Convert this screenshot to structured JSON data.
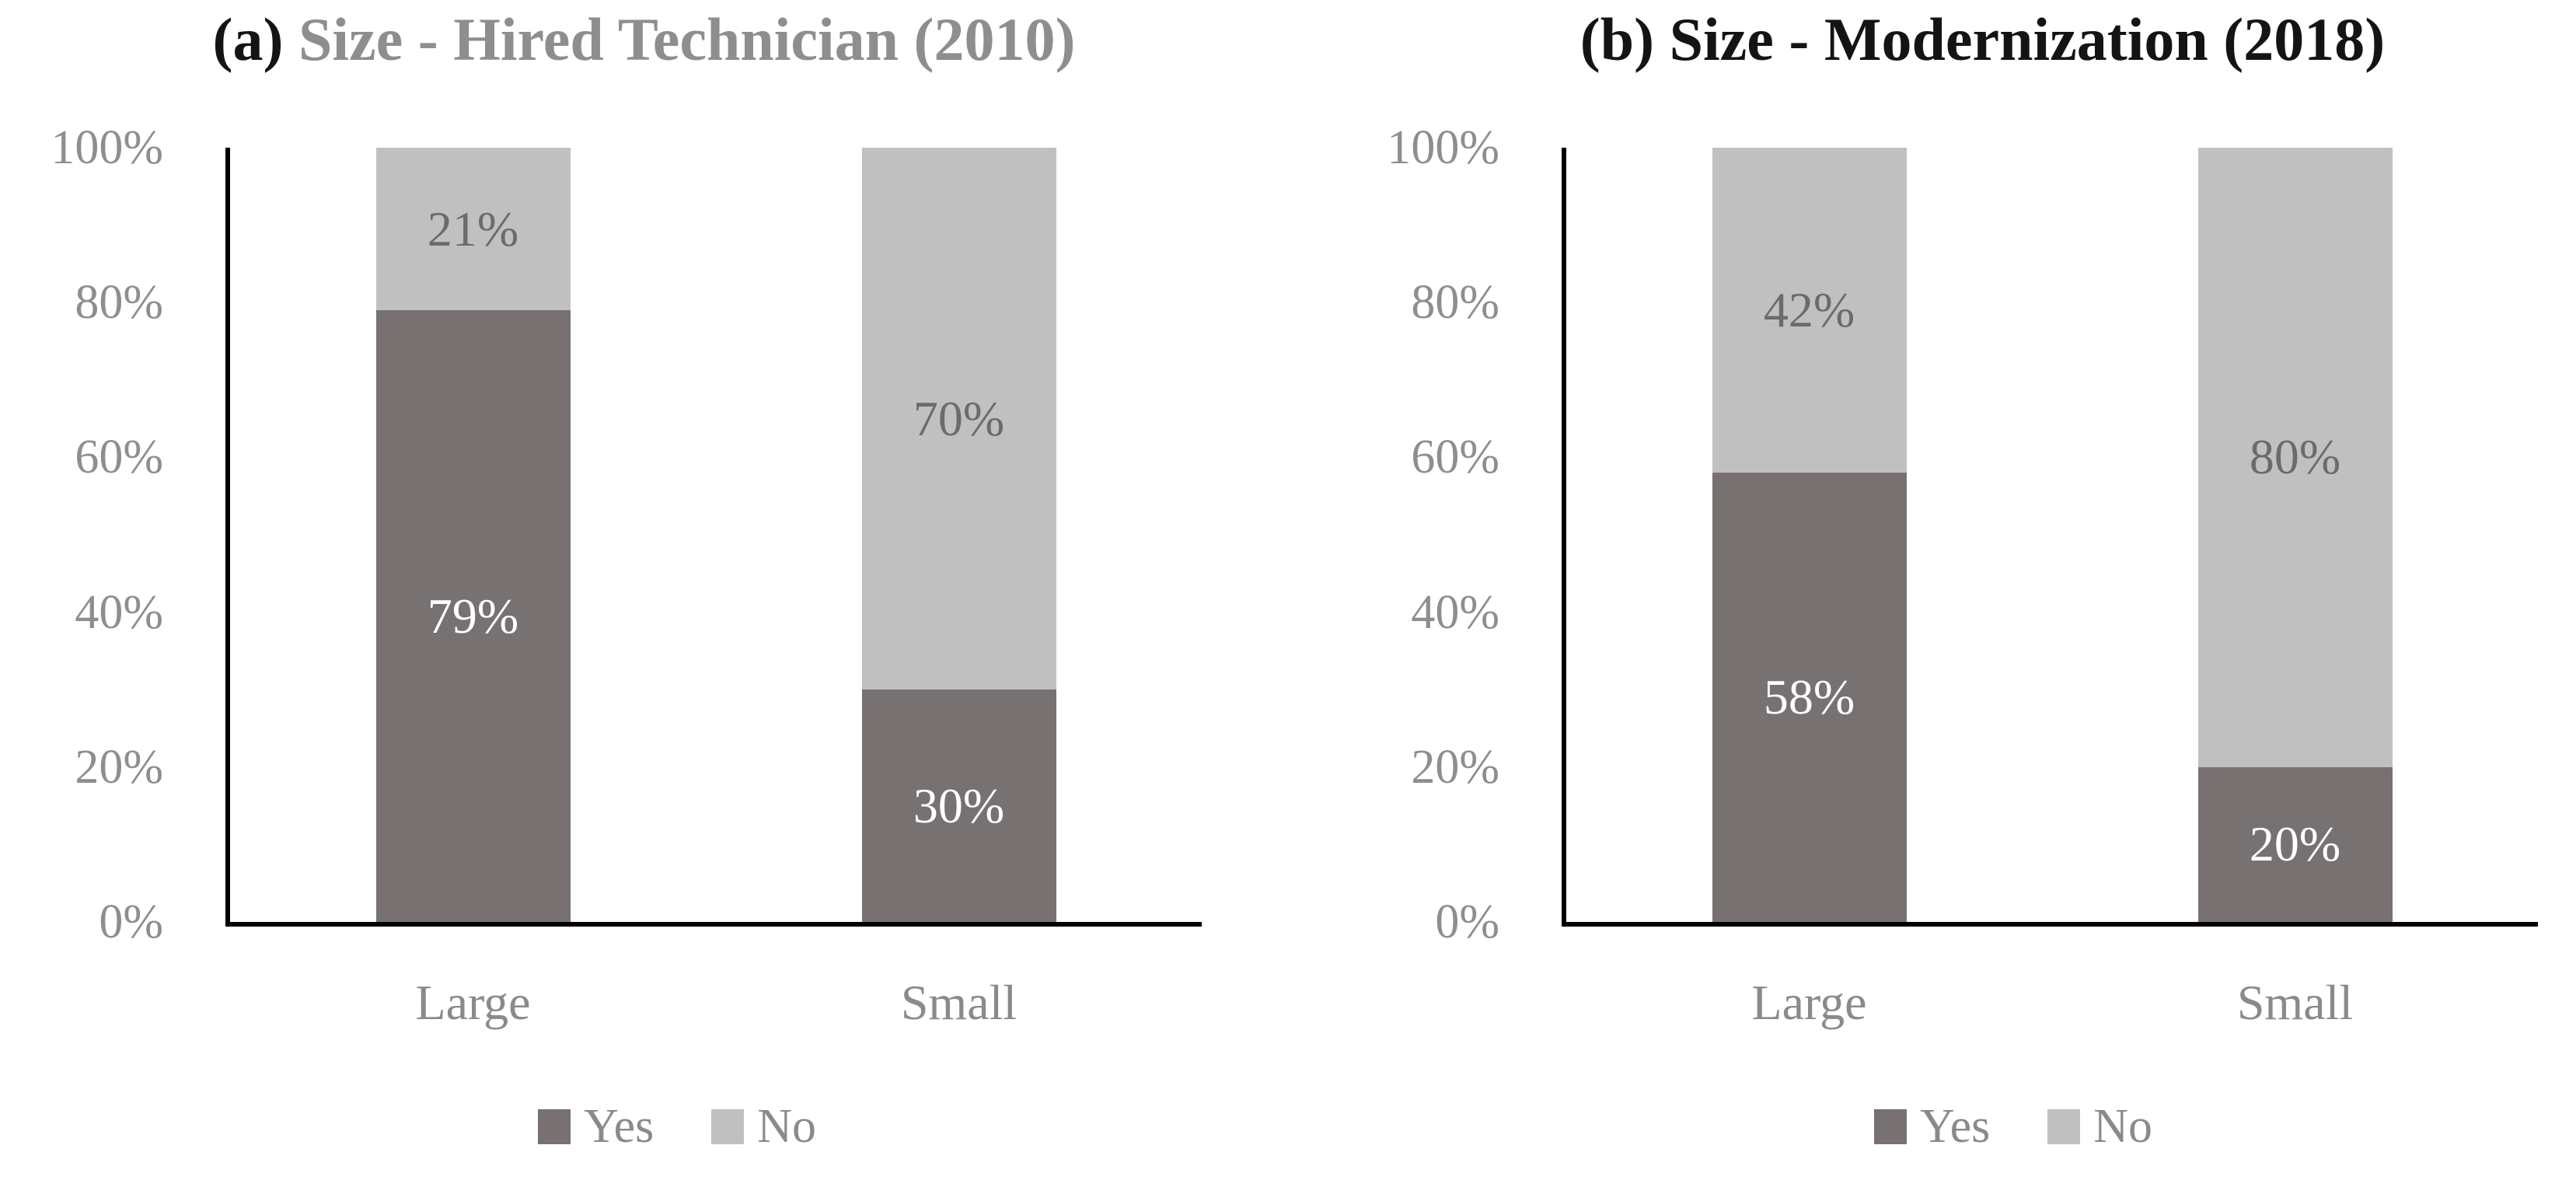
{
  "figure": {
    "background": "#ffffff",
    "colors": {
      "yes": "#777172",
      "no": "#c1c0c0",
      "axis_line": "#000000",
      "tick_text": "#8e8e8e",
      "category_text": "#8a8a8a",
      "legend_text": "#8a8a8a",
      "label_on_dark": "#ffffff",
      "label_on_light": "#6b6b6b",
      "title_prefix": "#141414"
    }
  },
  "chart_data": [
    {
      "type": "bar",
      "stacked": true,
      "panel": "a",
      "title_prefix": "(a)",
      "title": "Size - Hired Technician (2010)",
      "title_color": "#8e8e8e",
      "categories": [
        "Large",
        "Small"
      ],
      "series": [
        {
          "name": "Yes",
          "color_key": "yes",
          "values": [
            79,
            30
          ],
          "labels": [
            "79%",
            "30%"
          ]
        },
        {
          "name": "No",
          "color_key": "no",
          "values": [
            21,
            70
          ],
          "labels": [
            "21%",
            "70%"
          ]
        }
      ],
      "y_ticks": [
        "0%",
        "20%",
        "40%",
        "60%",
        "80%",
        "100%"
      ],
      "ylim": [
        0,
        100
      ],
      "grid": false,
      "legend": [
        "Yes",
        "No"
      ],
      "legend_position": "bottom"
    },
    {
      "type": "bar",
      "stacked": true,
      "panel": "b",
      "title_prefix": "(b)",
      "title": "Size - Modernization (2018)",
      "title_color": "#141414",
      "categories": [
        "Large",
        "Small"
      ],
      "series": [
        {
          "name": "Yes",
          "color_key": "yes",
          "values": [
            58,
            20
          ],
          "labels": [
            "58%",
            "20%"
          ]
        },
        {
          "name": "No",
          "color_key": "no",
          "values": [
            42,
            80
          ],
          "labels": [
            "42%",
            "80%"
          ]
        }
      ],
      "y_ticks": [
        "0%",
        "20%",
        "40%",
        "60%",
        "80%",
        "100%"
      ],
      "ylim": [
        0,
        100
      ],
      "grid": false,
      "legend": [
        "Yes",
        "No"
      ],
      "legend_position": "bottom"
    }
  ]
}
